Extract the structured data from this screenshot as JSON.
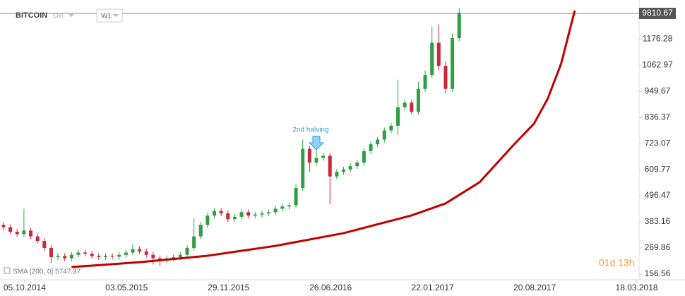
{
  "header": {
    "symbol": "BITCOIN",
    "source": "CRT",
    "timeframe": "W1"
  },
  "chart_data": {
    "type": "candlestick",
    "annotation": "2nd halving",
    "annotation_x": 46,
    "last_price_label": "9810.67",
    "indicator_label": "SMA [200, 0] 5747.37",
    "countdown": "01d 13h",
    "up_color": "#2f9e44",
    "down_color": "#c8283a",
    "xlim": [
      0,
      100
    ],
    "ylim": [
      135,
      1321
    ],
    "xticks": [
      {
        "value": 3.1,
        "label": "05.10.2014"
      },
      {
        "value": 18.1,
        "label": "03.05.2015"
      },
      {
        "value": 33.1,
        "label": "29.11.2015"
      },
      {
        "value": 48.1,
        "label": "26.06.2016"
      },
      {
        "value": 63.1,
        "label": "22.01.2017"
      },
      {
        "value": 78.1,
        "label": "20.08.2017"
      },
      {
        "value": 93.1,
        "label": "18.03.2018"
      }
    ],
    "yticks": [
      156.56,
      269.86,
      383.16,
      496.47,
      609.77,
      723.07,
      836.37,
      949.67,
      1062.97,
      1176.28
    ],
    "open": [
      370,
      360,
      340,
      330,
      345,
      320,
      300,
      270,
      230,
      235,
      225,
      240,
      250,
      245,
      235,
      230,
      235,
      232,
      240,
      250,
      265,
      255,
      240,
      225,
      215,
      225,
      230,
      240,
      270,
      320,
      370,
      410,
      430,
      420,
      395,
      405,
      425,
      410,
      415,
      420,
      425,
      440,
      450,
      455,
      530,
      700,
      640,
      660,
      670,
      580,
      600,
      610,
      625,
      640,
      690,
      720,
      740,
      780,
      800,
      880,
      900,
      860,
      960,
      1020,
      1160,
      1060,
      960,
      1180
    ],
    "high": [
      382,
      372,
      352,
      440,
      357,
      332,
      312,
      282,
      247,
      247,
      252,
      262,
      262,
      257,
      247,
      247,
      247,
      252,
      262,
      285,
      277,
      267,
      252,
      237,
      237,
      242,
      252,
      282,
      400,
      382,
      422,
      442,
      442,
      432,
      417,
      437,
      437,
      427,
      432,
      437,
      452,
      462,
      467,
      545,
      740,
      712,
      700,
      682,
      682,
      612,
      622,
      637,
      652,
      702,
      732,
      752,
      792,
      812,
      1000,
      912,
      912,
      990,
      1040,
      1230,
      1240,
      1080,
      1200,
      1310
    ],
    "low": [
      348,
      328,
      318,
      318,
      308,
      288,
      258,
      205,
      218,
      213,
      213,
      228,
      233,
      223,
      218,
      218,
      220,
      220,
      228,
      238,
      243,
      228,
      198,
      190,
      203,
      213,
      218,
      228,
      258,
      308,
      358,
      398,
      408,
      383,
      383,
      393,
      398,
      398,
      403,
      408,
      413,
      428,
      438,
      443,
      518,
      600,
      628,
      648,
      460,
      568,
      588,
      598,
      613,
      628,
      678,
      708,
      728,
      768,
      760,
      868,
      848,
      848,
      948,
      1008,
      1040,
      940,
      948,
      1168
    ],
    "close": [
      360,
      340,
      330,
      345,
      320,
      300,
      270,
      230,
      235,
      225,
      240,
      250,
      245,
      235,
      230,
      235,
      232,
      240,
      250,
      265,
      255,
      240,
      225,
      215,
      225,
      230,
      240,
      270,
      320,
      370,
      410,
      430,
      420,
      395,
      405,
      425,
      410,
      415,
      420,
      425,
      440,
      450,
      455,
      530,
      700,
      640,
      660,
      670,
      580,
      600,
      610,
      625,
      640,
      690,
      720,
      740,
      780,
      800,
      880,
      900,
      860,
      960,
      1020,
      1160,
      1060,
      960,
      1180,
      1290
    ],
    "sma": {
      "color": "#c00000",
      "x": [
        10,
        20,
        30,
        40,
        50,
        60,
        65,
        70,
        75,
        78,
        80,
        82,
        84
      ],
      "values": [
        187,
        208,
        236,
        279,
        334,
        411,
        463,
        555,
        717,
        809,
        916,
        1070,
        1300
      ]
    }
  }
}
